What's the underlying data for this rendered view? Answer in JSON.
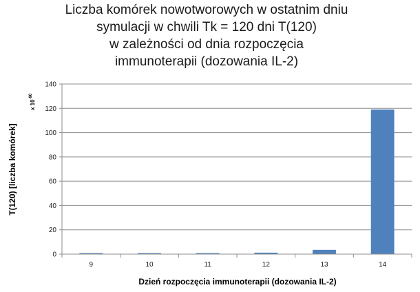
{
  "chart_data": {
    "type": "bar",
    "title_lines": [
      "Liczba komórek nowotworowych  w ostatnim dniu",
      "symulacji w chwili Tk = 120 dni T(120)",
      "w zależności  od dnia rozpoczęcia",
      "immunoterapii (dozowania IL-2)"
    ],
    "xlabel": "Dzień rozpoczęcia immunoterapii (dozowania IL-2)",
    "ylabel": "T(120) [liczba komórek]",
    "y_scale_note": {
      "base": "x 10",
      "exponent": "-90"
    },
    "categories": [
      "9",
      "10",
      "11",
      "12",
      "13",
      "14"
    ],
    "values": [
      0.3,
      0.4,
      0.5,
      1.2,
      3.5,
      119
    ],
    "ylim": [
      0,
      140
    ],
    "yticks": [
      0,
      20,
      40,
      60,
      80,
      100,
      120,
      140
    ],
    "grid": true,
    "legend": "none",
    "bar_color": "#4f81bd",
    "grid_color": "#8c8c8c"
  }
}
